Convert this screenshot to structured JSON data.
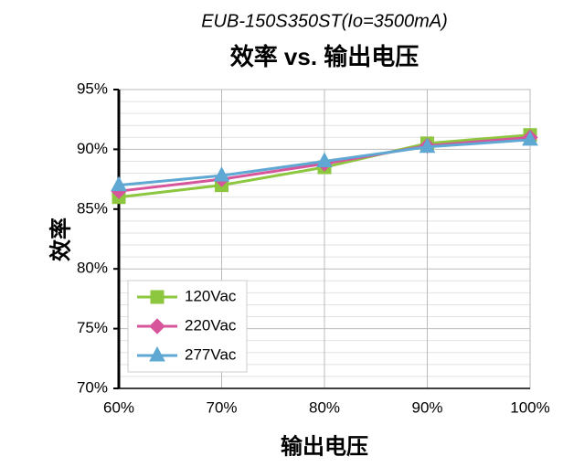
{
  "chart_data": {
    "type": "line",
    "subtitle": "EUB-150S350ST(Io=3500mA)",
    "title": "效率 vs. 输出电压",
    "y_label": "效率",
    "x_label": "输出电压",
    "categories": [
      "60%",
      "70%",
      "80%",
      "90%",
      "100%"
    ],
    "series": [
      {
        "name": "120Vac",
        "color": "#8dc63f",
        "marker": "square",
        "values": [
          86,
          87,
          88.5,
          90.5,
          91.2
        ]
      },
      {
        "name": "220Vac",
        "color": "#d6559b",
        "marker": "diamond",
        "values": [
          86.5,
          87.5,
          88.8,
          90.3,
          91
        ]
      },
      {
        "name": "277Vac",
        "color": "#5fa8d3",
        "marker": "triangle",
        "values": [
          87,
          87.8,
          89,
          90.2,
          90.8
        ]
      }
    ],
    "ylim": [
      70,
      95
    ],
    "yticks": [
      {
        "value": 70,
        "label": "70%"
      },
      {
        "value": 75,
        "label": "75%"
      },
      {
        "value": 80,
        "label": "80%"
      },
      {
        "value": 85,
        "label": "85%"
      },
      {
        "value": 90,
        "label": "90%"
      },
      {
        "value": 95,
        "label": "95%"
      }
    ],
    "grid": true
  }
}
